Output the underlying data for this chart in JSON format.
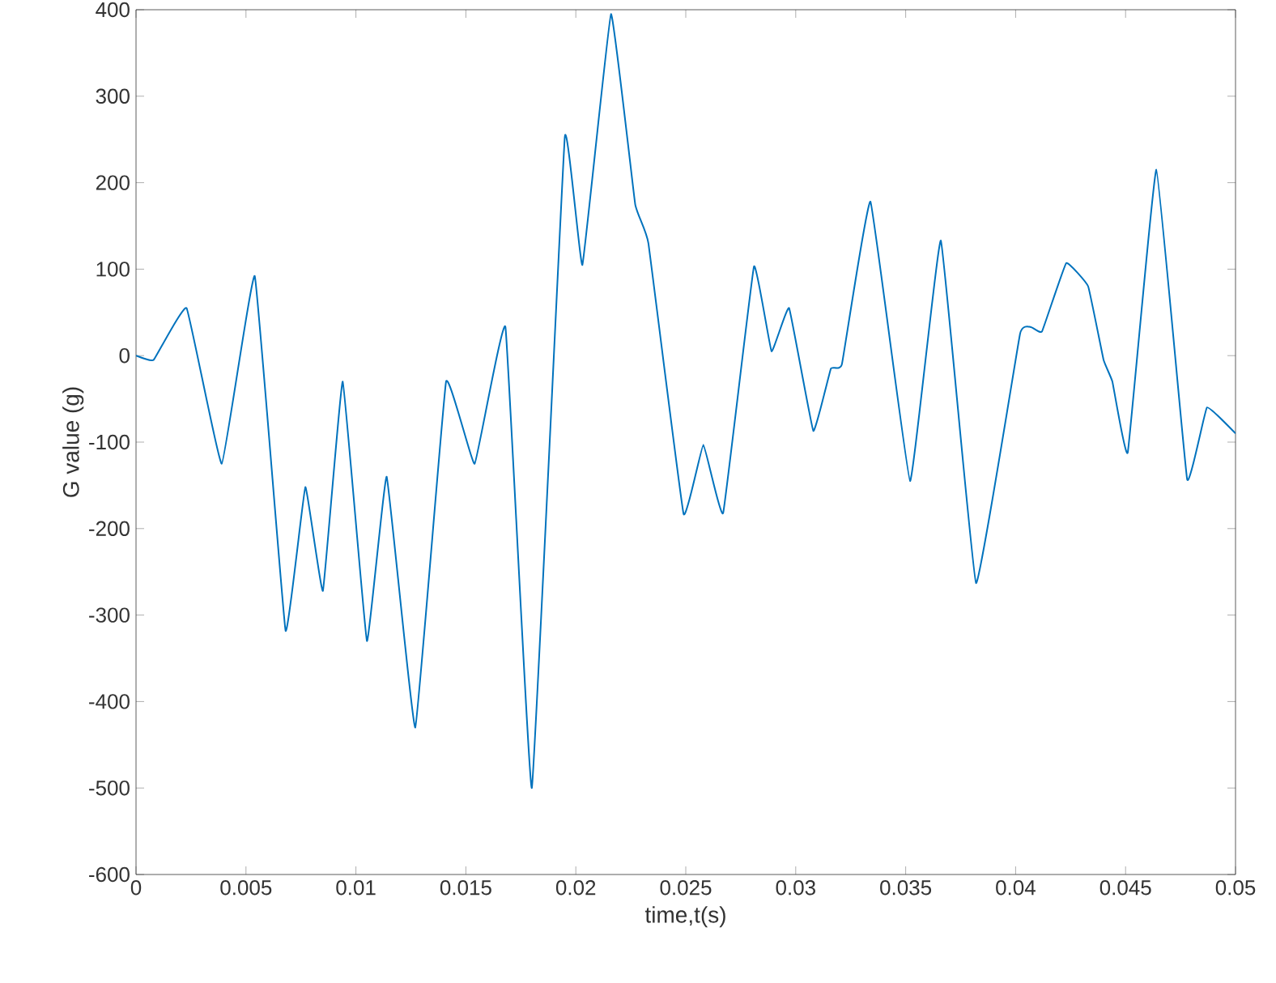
{
  "chart_data": {
    "type": "line",
    "xlabel": "time,t(s)",
    "ylabel": "G value (g)",
    "x": [
      0,
      0.0008,
      0.0023,
      0.0039,
      0.0054,
      0.0068,
      0.0077,
      0.0085,
      0.0094,
      0.0105,
      0.0114,
      0.0127,
      0.0141,
      0.0154,
      0.0168,
      0.018,
      0.0195,
      0.0203,
      0.0216,
      0.0227,
      0.0233,
      0.0249,
      0.0258,
      0.0267,
      0.0281,
      0.0289,
      0.0297,
      0.0308,
      0.0316,
      0.0321,
      0.0334,
      0.0352,
      0.0366,
      0.0382,
      0.0402,
      0.0407,
      0.0412,
      0.0423,
      0.0433,
      0.044,
      0.0444,
      0.0451,
      0.0464,
      0.0478,
      0.0487,
      0.05
    ],
    "series": [
      {
        "color": "#0072bd",
        "values": [
          0,
          -5,
          55,
          -125,
          92,
          -318,
          -152,
          -272,
          -30,
          -330,
          -140,
          -430,
          -30,
          -125,
          33,
          -500,
          253,
          105,
          395,
          175,
          130,
          -183,
          -103,
          -182,
          103,
          5,
          55,
          -87,
          -15,
          -10,
          178,
          -145,
          133,
          -263,
          25,
          33,
          28,
          107,
          80,
          -5,
          -30,
          -112,
          215,
          -143,
          -60,
          -90
        ]
      }
    ],
    "xlim": [
      0,
      0.05
    ],
    "ylim": [
      -600,
      400
    ],
    "xticks": [
      0,
      0.005,
      0.01,
      0.015,
      0.02,
      0.025,
      0.03,
      0.035,
      0.04,
      0.045,
      0.05
    ],
    "yticks": [
      -600,
      -500,
      -400,
      -300,
      -200,
      -100,
      0,
      100,
      200,
      300,
      400
    ],
    "grid": false,
    "marker": "none",
    "line_style": "solid"
  }
}
